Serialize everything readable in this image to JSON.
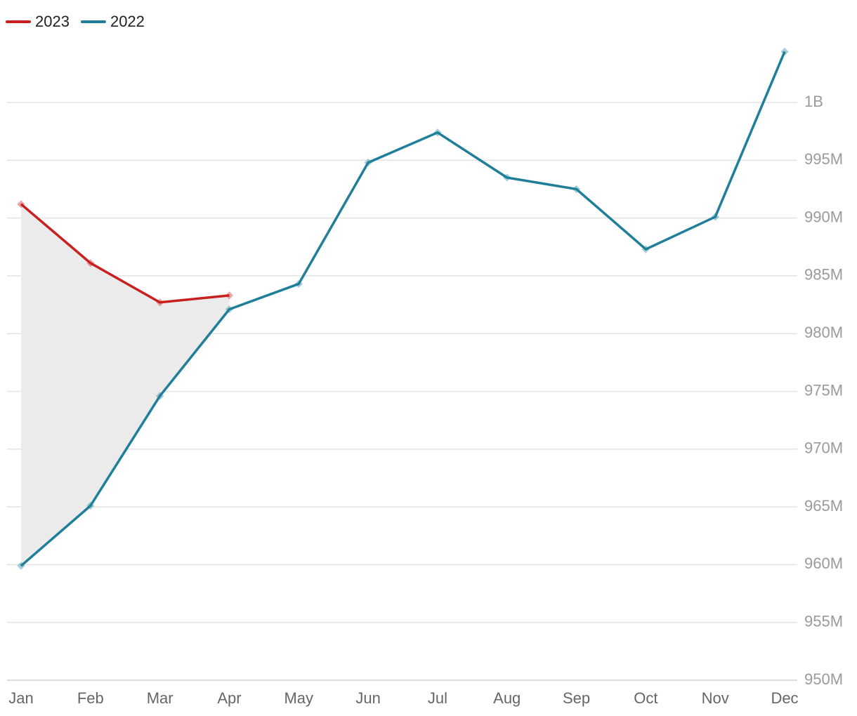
{
  "chart_data": {
    "type": "line",
    "categories": [
      "Jan",
      "Feb",
      "Mar",
      "Apr",
      "May",
      "Jun",
      "Jul",
      "Aug",
      "Sep",
      "Oct",
      "Nov",
      "Dec"
    ],
    "series": [
      {
        "name": "2023",
        "color": "#c8201e",
        "values": [
          991200000,
          986100000,
          982700000,
          983300000,
          null,
          null,
          null,
          null,
          null,
          null,
          null,
          null
        ]
      },
      {
        "name": "2022",
        "color": "#1f7f9a",
        "values": [
          959900000,
          965100000,
          974600000,
          982100000,
          984300000,
          994800000,
          997400000,
          993500000,
          992500000,
          987300000,
          990100000,
          1004400000
        ]
      }
    ],
    "ylim": [
      950000000,
      1005000000
    ],
    "yticks": [
      {
        "value": 950000000,
        "label": "950M"
      },
      {
        "value": 955000000,
        "label": "955M"
      },
      {
        "value": 960000000,
        "label": "960M"
      },
      {
        "value": 965000000,
        "label": "965M"
      },
      {
        "value": 970000000,
        "label": "970M"
      },
      {
        "value": 975000000,
        "label": "975M"
      },
      {
        "value": 980000000,
        "label": "980M"
      },
      {
        "value": 985000000,
        "label": "985M"
      },
      {
        "value": 990000000,
        "label": "990M"
      },
      {
        "value": 995000000,
        "label": "995M"
      },
      {
        "value": 1000000000,
        "label": "1B"
      }
    ],
    "grid": true,
    "legend": "top-left"
  }
}
